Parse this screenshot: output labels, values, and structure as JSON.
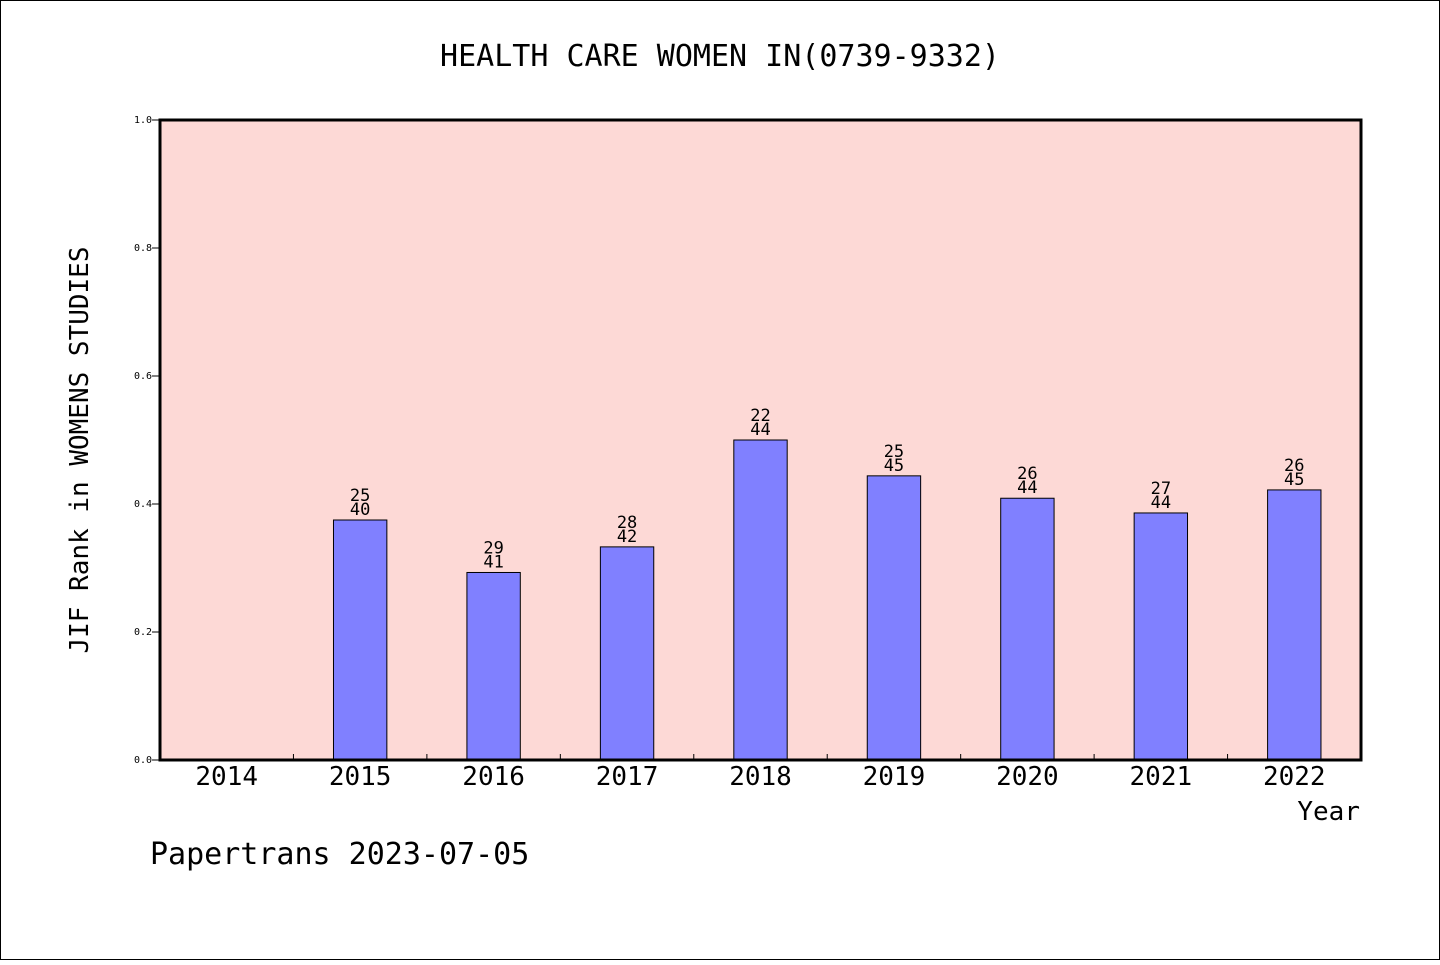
{
  "footer": "Papertrans 2023-07-05",
  "chart_data": {
    "type": "bar",
    "title": "HEALTH CARE WOMEN IN(0739-9332)",
    "xlabel": "Year",
    "ylabel": "JIF Rank in WOMENS STUDIES",
    "ylim": [
      0,
      1.0
    ],
    "yticks": [
      "0.0",
      "0.2",
      "0.4",
      "0.6",
      "0.8",
      "1.0"
    ],
    "grid": false,
    "categories": [
      "2014",
      "2015",
      "2016",
      "2017",
      "2018",
      "2019",
      "2020",
      "2021",
      "2022"
    ],
    "values": [
      null,
      0.375,
      0.293,
      0.333,
      0.5,
      0.444,
      0.409,
      0.386,
      0.422
    ],
    "labels": [
      null,
      [
        "25",
        "40"
      ],
      [
        "29",
        "41"
      ],
      [
        "28",
        "42"
      ],
      [
        "22",
        "44"
      ],
      [
        "25",
        "45"
      ],
      [
        "26",
        "44"
      ],
      [
        "27",
        "44"
      ],
      [
        "26",
        "45"
      ]
    ],
    "colors": {
      "plot_background": "#fdd9d6",
      "bar_fill": "#8080ff",
      "bar_stroke": "#000000",
      "frame": "#000000"
    }
  }
}
